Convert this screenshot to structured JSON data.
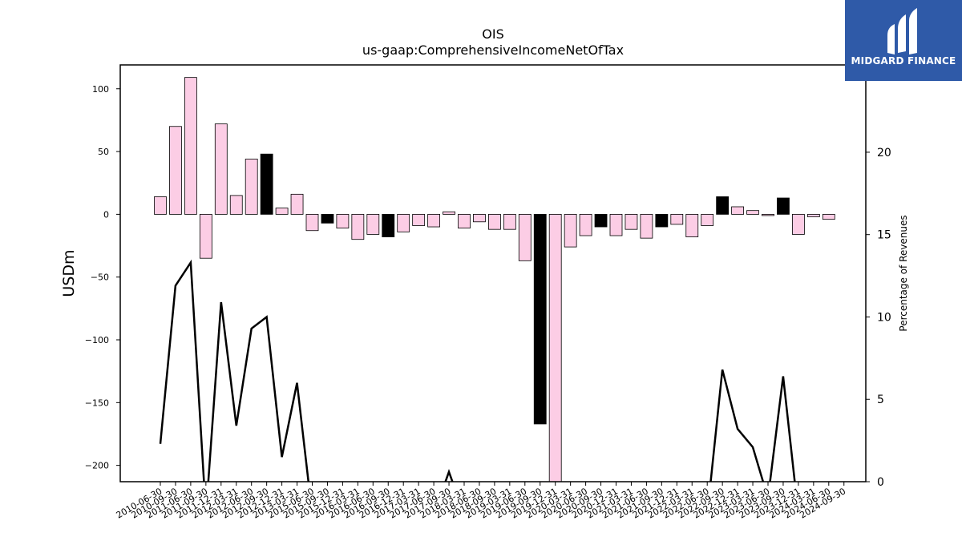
{
  "chart_data": {
    "type": "bar+line",
    "title": "OIS",
    "subtitle": "us-gaap:ComprehensiveIncomeNetOfTax",
    "ylabel": "USDm",
    "y2label": "Percentage of Revenues",
    "ylim": [
      -213,
      119
    ],
    "y2lim": [
      0,
      25.3
    ],
    "yticks": [
      100,
      50,
      0,
      -50,
      -100,
      -150,
      -200
    ],
    "yticklabels": [
      "100",
      "50",
      "0",
      "−50",
      "−100",
      "−150",
      "−200"
    ],
    "y2ticks": [
      0,
      5,
      10,
      15,
      20
    ],
    "y2ticklabels": [
      "0",
      "5",
      "10",
      "15",
      "20"
    ],
    "grid": false,
    "categories": [
      "2010-06-30",
      "2010-09-30",
      "2011-06-30",
      "2011-09-30",
      "2011-12-31",
      "2012-03-31",
      "2012-06-30",
      "2012-09-30",
      "2012-12-31",
      "2013-03-31",
      "2015-06-30",
      "2015-09-30",
      "2015-12-31",
      "2016-03-31",
      "2016-06-30",
      "2016-09-30",
      "2016-12-31",
      "2017-03-31",
      "2017-06-30",
      "2017-09-30",
      "2018-03-31",
      "2018-06-30",
      "2018-09-30",
      "2019-03-31",
      "2019-06-30",
      "2019-09-30",
      "2019-12-31",
      "2020-03-31",
      "2020-06-30",
      "2020-09-30",
      "2020-12-31",
      "2021-03-31",
      "2021-06-30",
      "2021-09-30",
      "2021-12-31",
      "2022-03-31",
      "2022-06-30",
      "2022-09-30",
      "2022-12-31",
      "2023-03-31",
      "2023-06-30",
      "2023-09-30",
      "2023-12-31",
      "2024-03-31",
      "2024-06-30",
      "2024-09-30"
    ],
    "xticklabels": [
      "2010-06-30",
      "2010-09-30",
      "2011-06-30",
      "2011-09-30",
      "2011-12-31",
      "2012-03-31",
      "2012-06-30",
      "2012-09-30",
      "2012-12-31",
      "2013-03-31",
      "2015-06-30",
      "2015-09-30",
      "2015-12-31",
      "2016-03-31",
      "2016-06-30",
      "2016-09-30",
      "2016-12-31",
      "2017-03-31",
      "2017-06-30",
      "2017-09-30",
      "2018-03-31",
      "2018-06-30",
      "2018-09-30",
      "2019-03-31",
      "2019-06-30",
      "2019-09-30",
      "2019-12-31",
      "2020-03-31",
      "2020-06-30",
      "2020-09-30",
      "2020-12-31",
      "2021-03-31",
      "2021-06-30",
      "2021-09-30",
      "2021-12-31",
      "2022-03-31",
      "2022-06-30",
      "2022-09-30",
      "2022-12-31",
      "2023-03-31",
      "2023-06-30",
      "2023-09-30",
      "2023-12-31",
      "2024-03-31",
      "2024-06-30",
      "2024-09-30"
    ],
    "bars": [
      14,
      70,
      109,
      -35,
      72,
      15,
      44,
      48,
      5,
      16,
      -13,
      -7,
      -11,
      -20,
      -16,
      -18,
      -14,
      -9,
      -10,
      2,
      -11,
      -6,
      -12,
      -12,
      -37,
      -167,
      -260,
      -26,
      -17,
      -10,
      -17,
      -12,
      -19,
      -10,
      -8,
      -18,
      -9,
      14,
      6,
      3,
      -1,
      13,
      -16,
      -2,
      -4,
      null
    ],
    "bar_highlight": [
      false,
      false,
      false,
      false,
      false,
      false,
      false,
      true,
      false,
      false,
      false,
      true,
      false,
      false,
      false,
      true,
      false,
      false,
      false,
      false,
      false,
      false,
      false,
      false,
      false,
      true,
      false,
      false,
      false,
      true,
      false,
      false,
      false,
      true,
      false,
      false,
      false,
      true,
      false,
      false,
      false,
      true,
      false,
      false,
      false,
      false
    ],
    "line": [
      2.3,
      11.9,
      13.3,
      -2,
      10.9,
      3.4,
      9.3,
      10.0,
      1.5,
      6.0,
      -2,
      -2,
      -2,
      -2,
      -2,
      -2,
      -2,
      -2,
      -2,
      0.6,
      -2,
      -2,
      -2,
      -2,
      -2,
      -2,
      -2,
      -2,
      -2,
      -2,
      -2,
      -2,
      -2,
      -2,
      -2,
      -2,
      -2,
      6.8,
      3.2,
      2.1,
      -1,
      6.4,
      -2,
      -2,
      -2,
      -2
    ],
    "colors": {
      "bar": "#fccde5",
      "bar_highlight": "#000000",
      "line": "#000000",
      "axis": "#000000"
    }
  },
  "logo": {
    "text": "MIDGARD FINANCE",
    "color": "#2f5aa8"
  }
}
